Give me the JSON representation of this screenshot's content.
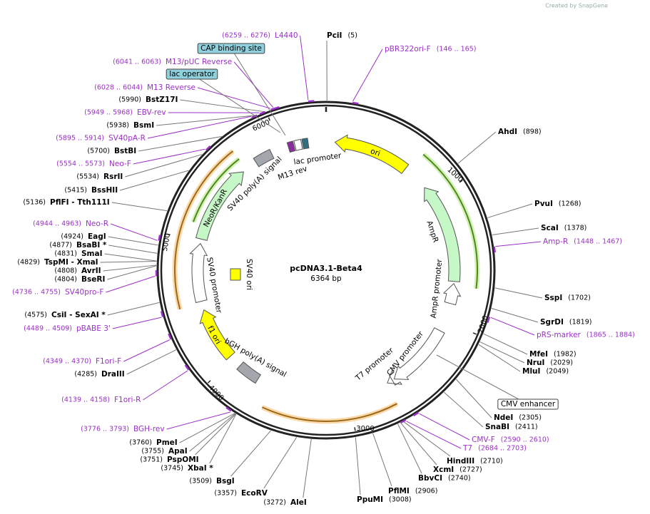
{
  "credit": "Created by SnapGene",
  "map": {
    "name": "pcDNA3.1-Beta4",
    "size": "6364 bp"
  },
  "ruler": [
    "1000",
    "2000",
    "3000",
    "4000",
    "5000",
    "6000"
  ],
  "sites": [
    {
      "name": "PciI",
      "position": "(5)"
    },
    {
      "name": "AhdI",
      "position": "(898)"
    },
    {
      "name": "PvuI",
      "position": "(1268)"
    },
    {
      "name": "ScaI",
      "position": "(1378)"
    },
    {
      "name": "SspI",
      "position": "(1702)"
    },
    {
      "name": "SgrDI",
      "position": "(1819)"
    },
    {
      "name": "MfeI",
      "position": "(1982)"
    },
    {
      "name": "NruI",
      "position": "(2029)"
    },
    {
      "name": "MluI",
      "position": "(2049)"
    },
    {
      "name": "NdeI",
      "position": "(2305)"
    },
    {
      "name": "SnaBI",
      "position": "(2411)"
    },
    {
      "name": "HindIII",
      "position": "(2710)"
    },
    {
      "name": "XcmI",
      "position": "(2727)"
    },
    {
      "name": "BbvCI",
      "position": "(2740)"
    },
    {
      "name": "PflMI",
      "position": "(2906)"
    },
    {
      "name": "PpuMI",
      "position": "(3008)"
    },
    {
      "name": "AleI",
      "position": "(3272)"
    },
    {
      "name": "EcoRV",
      "position": "(3357)"
    },
    {
      "name": "BsgI",
      "position": "(3509)"
    },
    {
      "name": "XbaI *",
      "position": "(3745)"
    },
    {
      "name": "PspOMI",
      "position": "(3751)"
    },
    {
      "name": "ApaI",
      "position": "(3755)"
    },
    {
      "name": "PmeI",
      "position": "(3760)"
    },
    {
      "name": "DraIII",
      "position": "(4285)"
    },
    {
      "name": "CsiI - SexAI *",
      "position": "(4575)"
    },
    {
      "name": "BseRI",
      "position": "(4804)"
    },
    {
      "name": "AvrII",
      "position": "(4808)"
    },
    {
      "name": "TspMI - XmaI",
      "position": "(4829)"
    },
    {
      "name": "SmaI",
      "position": "(4831)"
    },
    {
      "name": "BsaBI *",
      "position": "(4877)"
    },
    {
      "name": "EagI",
      "position": "(4924)"
    },
    {
      "name": "PflFI - Tth111I",
      "position": "(5136)"
    },
    {
      "name": "BssHII",
      "position": "(5415)"
    },
    {
      "name": "RsrII",
      "position": "(5534)"
    },
    {
      "name": "BstBI",
      "position": "(5700)"
    },
    {
      "name": "BsmI",
      "position": "(5938)"
    },
    {
      "name": "BstZ17I",
      "position": "(5990)"
    }
  ],
  "primers": [
    {
      "name": "L4440",
      "range": "(6259 .. 6276)"
    },
    {
      "name": "pBR322ori-F",
      "range": "(146 .. 165)"
    },
    {
      "name": "M13/pUC Reverse",
      "range": "(6041 .. 6063)"
    },
    {
      "name": "M13 Reverse",
      "range": "(6028 .. 6044)"
    },
    {
      "name": "EBV-rev",
      "range": "(5949 .. 5968)"
    },
    {
      "name": "SV40pA-R",
      "range": "(5895 .. 5914)"
    },
    {
      "name": "Neo-F",
      "range": "(5554 .. 5573)"
    },
    {
      "name": "Neo-R",
      "range": "(4944 .. 4963)"
    },
    {
      "name": "SV40pro-F",
      "range": "(4736 .. 4755)"
    },
    {
      "name": "pBABE 3'",
      "range": "(4489 .. 4509)"
    },
    {
      "name": "F1ori-F",
      "range": "(4349 .. 4370)"
    },
    {
      "name": "F1ori-R",
      "range": "(4139 .. 4158)"
    },
    {
      "name": "BGH-rev",
      "range": "(3776 .. 3793)"
    },
    {
      "name": "Amp-R",
      "range": "(1448 .. 1467)"
    },
    {
      "name": "pRS-marker",
      "range": "(1865 .. 1884)"
    },
    {
      "name": "CMV-F",
      "range": "(2590 .. 2610)"
    },
    {
      "name": "T7",
      "range": "(2684 .. 2703)"
    }
  ],
  "boxed_features": [
    "CAP binding site",
    "lac operator",
    "CMV enhancer"
  ],
  "features": [
    "ori",
    "AmpR",
    "AmpR promoter",
    "CMV promoter",
    "T7 promoter",
    "bGH poly(A) signal",
    "f1 ori",
    "SV40 promoter",
    "SV40 ori",
    "NeoR/KanR",
    "SV40 poly(A) signal",
    "M13 rev",
    "lac promoter"
  ]
}
